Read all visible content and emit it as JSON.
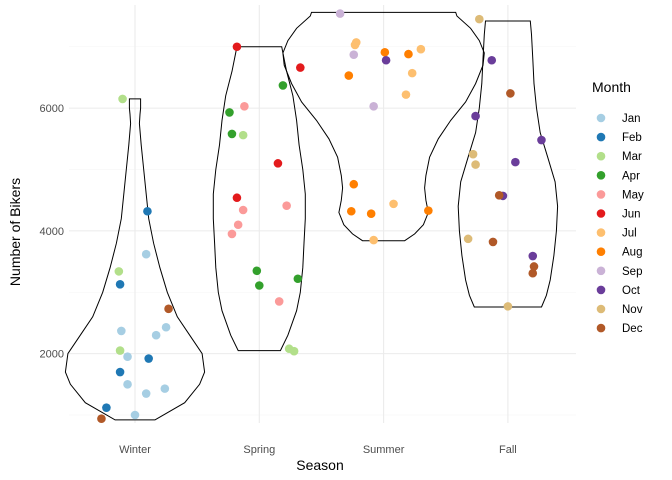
{
  "chart_data": {
    "type": "violin+jitter",
    "xlabel": "Season",
    "ylabel": "Number of Bikers",
    "categories": [
      "Winter",
      "Spring",
      "Summer",
      "Fall"
    ],
    "ylim": [
      870,
      7680
    ],
    "yticks": [
      2000,
      4000,
      6000
    ],
    "y_ticks_labels": [
      "2000",
      "4000",
      "6000"
    ],
    "grid": true,
    "legend": {
      "title": "Month",
      "placement": "right",
      "entries": [
        {
          "label": "Jan",
          "color": "#A6CEE3"
        },
        {
          "label": "Feb",
          "color": "#1F78B4"
        },
        {
          "label": "Mar",
          "color": "#B2DF8A"
        },
        {
          "label": "Apr",
          "color": "#33A02C"
        },
        {
          "label": "May",
          "color": "#FB9A99"
        },
        {
          "label": "Jun",
          "color": "#E31A1C"
        },
        {
          "label": "Jul",
          "color": "#FDBF6F"
        },
        {
          "label": "Aug",
          "color": "#FF7F00"
        },
        {
          "label": "Sep",
          "color": "#CAB2D6"
        },
        {
          "label": "Oct",
          "color": "#6A3D9A"
        },
        {
          "label": "Nov",
          "color": "#DDBB77"
        },
        {
          "label": "Dec",
          "color": "#B15928"
        }
      ]
    },
    "violins": [
      {
        "season": "Winter",
        "profile": [
          [
            920,
            0.16
          ],
          [
            1200,
            0.4
          ],
          [
            1500,
            0.52
          ],
          [
            1700,
            0.56
          ],
          [
            2000,
            0.54
          ],
          [
            2300,
            0.44
          ],
          [
            2600,
            0.34
          ],
          [
            3000,
            0.26
          ],
          [
            3400,
            0.2
          ],
          [
            3800,
            0.15
          ],
          [
            4200,
            0.11
          ],
          [
            4600,
            0.09
          ],
          [
            5000,
            0.07
          ],
          [
            5400,
            0.05
          ],
          [
            5750,
            0.035
          ],
          [
            5900,
            0.04
          ],
          [
            6000,
            0.045
          ],
          [
            6100,
            0.045
          ],
          [
            6150,
            0.045
          ]
        ]
      },
      {
        "season": "Spring",
        "profile": [
          [
            2050,
            0.17
          ],
          [
            2300,
            0.23
          ],
          [
            2700,
            0.3
          ],
          [
            3000,
            0.33
          ],
          [
            3400,
            0.35
          ],
          [
            3800,
            0.36
          ],
          [
            4200,
            0.37
          ],
          [
            4600,
            0.37
          ],
          [
            5000,
            0.35
          ],
          [
            5400,
            0.32
          ],
          [
            5800,
            0.3
          ],
          [
            6200,
            0.27
          ],
          [
            6600,
            0.22
          ],
          [
            6900,
            0.19
          ],
          [
            7000,
            0.18
          ]
        ]
      },
      {
        "season": "Summer",
        "profile": [
          [
            3840,
            0.17
          ],
          [
            3950,
            0.25
          ],
          [
            4100,
            0.32
          ],
          [
            4300,
            0.36
          ],
          [
            4500,
            0.34
          ],
          [
            4700,
            0.33
          ],
          [
            4900,
            0.34
          ],
          [
            5200,
            0.37
          ],
          [
            5500,
            0.44
          ],
          [
            5800,
            0.54
          ],
          [
            6100,
            0.66
          ],
          [
            6400,
            0.74
          ],
          [
            6700,
            0.8
          ],
          [
            6900,
            0.81
          ],
          [
            7100,
            0.77
          ],
          [
            7300,
            0.7
          ],
          [
            7500,
            0.59
          ],
          [
            7560,
            0.58
          ]
        ]
      },
      {
        "season": "Fall",
        "profile": [
          [
            2760,
            0.27
          ],
          [
            2950,
            0.31
          ],
          [
            3200,
            0.34
          ],
          [
            3600,
            0.37
          ],
          [
            4000,
            0.39
          ],
          [
            4400,
            0.4
          ],
          [
            4800,
            0.38
          ],
          [
            5200,
            0.32
          ],
          [
            5600,
            0.26
          ],
          [
            6000,
            0.23
          ],
          [
            6400,
            0.21
          ],
          [
            6800,
            0.2
          ],
          [
            7200,
            0.19
          ],
          [
            7420,
            0.18
          ]
        ]
      }
    ],
    "points": [
      {
        "month": "Jan",
        "x": 0.89,
        "y": 2370
      },
      {
        "month": "Jan",
        "x": 0.94,
        "y": 1950
      },
      {
        "month": "Jan",
        "x": 0.94,
        "y": 1500
      },
      {
        "month": "Jan",
        "x": 1.09,
        "y": 3620
      },
      {
        "month": "Jan",
        "x": 1.09,
        "y": 1350
      },
      {
        "month": "Jan",
        "x": 1.0,
        "y": 1000
      },
      {
        "month": "Jan",
        "x": 1.25,
        "y": 2430
      },
      {
        "month": "Jan",
        "x": 1.24,
        "y": 1430
      },
      {
        "month": "Jan",
        "x": 1.17,
        "y": 2300
      },
      {
        "month": "Feb",
        "x": 0.88,
        "y": 3130
      },
      {
        "month": "Feb",
        "x": 0.88,
        "y": 1700
      },
      {
        "month": "Feb",
        "x": 0.77,
        "y": 1120
      },
      {
        "month": "Feb",
        "x": 1.1,
        "y": 4320
      },
      {
        "month": "Feb",
        "x": 1.11,
        "y": 1920
      },
      {
        "month": "Mar",
        "x": 0.87,
        "y": 3340
      },
      {
        "month": "Mar",
        "x": 0.88,
        "y": 2050
      },
      {
        "month": "Mar",
        "x": 0.9,
        "y": 6150
      },
      {
        "month": "Mar",
        "x": 1.87,
        "y": 5560
      },
      {
        "month": "Mar",
        "x": 2.24,
        "y": 2080
      },
      {
        "month": "Mar",
        "x": 2.28,
        "y": 2040
      },
      {
        "month": "Apr",
        "x": 1.76,
        "y": 5930
      },
      {
        "month": "Apr",
        "x": 1.78,
        "y": 5580
      },
      {
        "month": "Apr",
        "x": 1.98,
        "y": 3350
      },
      {
        "month": "Apr",
        "x": 2.0,
        "y": 3110
      },
      {
        "month": "Apr",
        "x": 2.19,
        "y": 6370
      },
      {
        "month": "Apr",
        "x": 2.31,
        "y": 3220
      },
      {
        "month": "May",
        "x": 1.88,
        "y": 6030
      },
      {
        "month": "May",
        "x": 1.78,
        "y": 3950
      },
      {
        "month": "May",
        "x": 1.83,
        "y": 4100
      },
      {
        "month": "May",
        "x": 1.87,
        "y": 4340
      },
      {
        "month": "May",
        "x": 2.22,
        "y": 4410
      },
      {
        "month": "May",
        "x": 2.16,
        "y": 2850
      },
      {
        "month": "Jun",
        "x": 1.82,
        "y": 7000
      },
      {
        "month": "Jun",
        "x": 1.82,
        "y": 4540
      },
      {
        "month": "Jun",
        "x": 2.15,
        "y": 5100
      },
      {
        "month": "Jun",
        "x": 2.33,
        "y": 6660
      },
      {
        "month": "Jul",
        "x": 2.77,
        "y": 7030
      },
      {
        "month": "Jul",
        "x": 2.78,
        "y": 7070
      },
      {
        "month": "Jul",
        "x": 3.23,
        "y": 6570
      },
      {
        "month": "Jul",
        "x": 3.18,
        "y": 6220
      },
      {
        "month": "Jul",
        "x": 3.3,
        "y": 6960
      },
      {
        "month": "Jul",
        "x": 3.08,
        "y": 4440
      },
      {
        "month": "Jul",
        "x": 2.92,
        "y": 3850
      },
      {
        "month": "Aug",
        "x": 2.72,
        "y": 6530
      },
      {
        "month": "Aug",
        "x": 2.76,
        "y": 4760
      },
      {
        "month": "Aug",
        "x": 2.74,
        "y": 4320
      },
      {
        "month": "Aug",
        "x": 2.9,
        "y": 4280
      },
      {
        "month": "Aug",
        "x": 3.01,
        "y": 6910
      },
      {
        "month": "Aug",
        "x": 3.2,
        "y": 6880
      },
      {
        "month": "Aug",
        "x": 3.36,
        "y": 4330
      },
      {
        "month": "Sep",
        "x": 2.65,
        "y": 7540
      },
      {
        "month": "Sep",
        "x": 2.76,
        "y": 6870
      },
      {
        "month": "Sep",
        "x": 2.92,
        "y": 6030
      },
      {
        "month": "Oct",
        "x": 3.02,
        "y": 6780
      },
      {
        "month": "Oct",
        "x": 3.74,
        "y": 5870
      },
      {
        "month": "Oct",
        "x": 3.87,
        "y": 6780
      },
      {
        "month": "Oct",
        "x": 4.06,
        "y": 5120
      },
      {
        "month": "Oct",
        "x": 3.96,
        "y": 4570
      },
      {
        "month": "Oct",
        "x": 4.2,
        "y": 3590
      },
      {
        "month": "Oct",
        "x": 4.27,
        "y": 5480
      },
      {
        "month": "Nov",
        "x": 3.77,
        "y": 7450
      },
      {
        "month": "Nov",
        "x": 3.72,
        "y": 5250
      },
      {
        "month": "Nov",
        "x": 3.74,
        "y": 5080
      },
      {
        "month": "Nov",
        "x": 3.68,
        "y": 3870
      },
      {
        "month": "Nov",
        "x": 4.0,
        "y": 2770
      },
      {
        "month": "Dec",
        "x": 1.27,
        "y": 2730
      },
      {
        "month": "Dec",
        "x": 0.73,
        "y": 940
      },
      {
        "month": "Dec",
        "x": 4.02,
        "y": 6240
      },
      {
        "month": "Dec",
        "x": 3.93,
        "y": 4580
      },
      {
        "month": "Dec",
        "x": 3.88,
        "y": 3820
      },
      {
        "month": "Dec",
        "x": 4.21,
        "y": 3420
      },
      {
        "month": "Dec",
        "x": 4.2,
        "y": 3310
      }
    ]
  }
}
